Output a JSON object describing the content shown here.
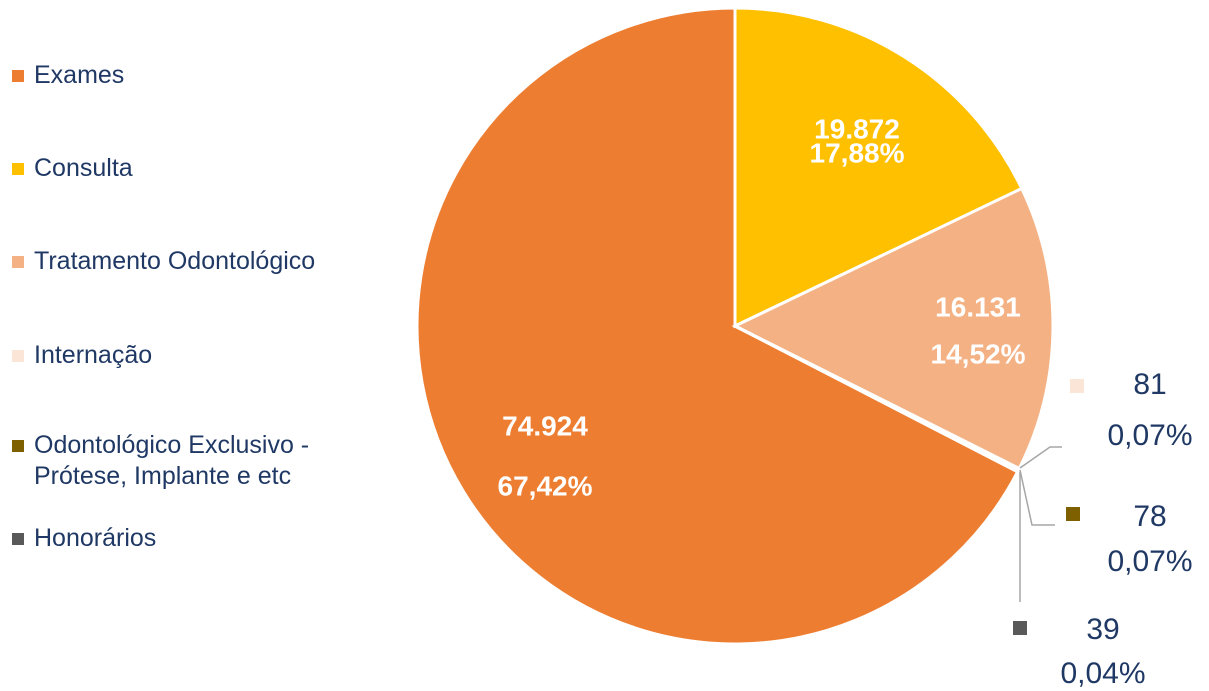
{
  "chart_data": {
    "type": "pie",
    "categories": [
      "Exames",
      "Consulta",
      "Tratamento Odontológico",
      "Internação",
      "Odontológico Exclusivo - Prótese, Implante e etc",
      "Honorários"
    ],
    "values": [
      74924,
      19872,
      16131,
      81,
      78,
      39
    ],
    "value_labels": [
      "74.924",
      "19.872",
      "16.131",
      "81",
      "78",
      "39"
    ],
    "percents": [
      67.42,
      17.88,
      14.52,
      0.07,
      0.07,
      0.04
    ],
    "percent_labels": [
      "67,42%",
      "17,88%",
      "14,52%",
      "0,07%",
      "0,07%",
      "0,04%"
    ],
    "colors": [
      "#ED7D31",
      "#FFC000",
      "#F4B183",
      "#FBE5D6",
      "#7F6000",
      "#595959"
    ],
    "legend": "left"
  }
}
